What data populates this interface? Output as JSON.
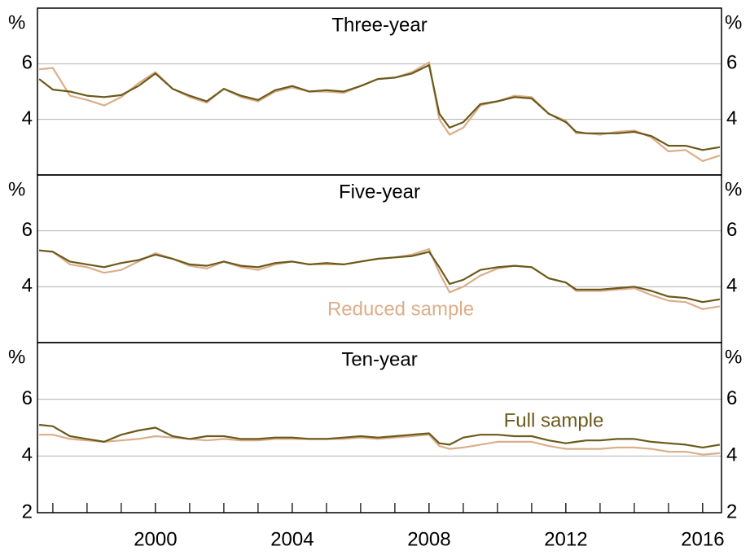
{
  "chart_data": {
    "type": "line",
    "xlim": [
      1996.55,
      2016.55
    ],
    "xticks": [
      2000,
      2004,
      2008,
      2012,
      2016
    ],
    "xminor": [
      1997,
      1998,
      1999,
      2000,
      2001,
      2002,
      2003,
      2004,
      2005,
      2006,
      2007,
      2008,
      2009,
      2010,
      2011,
      2012,
      2013,
      2014,
      2015,
      2016
    ],
    "x": [
      1996.6,
      1997.0,
      1997.5,
      1998.0,
      1998.5,
      1999.0,
      1999.5,
      2000.0,
      2000.5,
      2001.0,
      2001.5,
      2002.0,
      2002.5,
      2003.0,
      2003.5,
      2004.0,
      2004.5,
      2005.0,
      2005.5,
      2006.0,
      2006.5,
      2007.0,
      2007.5,
      2008.0,
      2008.3,
      2008.6,
      2009.0,
      2009.5,
      2010.0,
      2010.5,
      2011.0,
      2011.5,
      2012.0,
      2012.3,
      2012.6,
      2013.0,
      2013.5,
      2014.0,
      2014.5,
      2015.0,
      2015.5,
      2016.0,
      2016.5
    ],
    "panels": [
      {
        "title": "Three-year",
        "unit": "%",
        "ylim": [
          2,
          8
        ],
        "yticks": [
          4,
          6
        ],
        "grid": true,
        "series": [
          {
            "color": "#dcae8a",
            "values": [
              5.8,
              5.85,
              4.85,
              4.7,
              4.5,
              4.8,
              5.3,
              5.7,
              5.1,
              4.8,
              4.6,
              5.1,
              4.8,
              4.65,
              5.0,
              5.15,
              5.0,
              5.0,
              4.95,
              5.2,
              5.45,
              5.5,
              5.7,
              6.05,
              4.0,
              3.45,
              3.7,
              4.5,
              4.65,
              4.85,
              4.8,
              4.2,
              3.95,
              3.5,
              3.5,
              3.45,
              3.55,
              3.6,
              3.35,
              2.85,
              2.9,
              2.5,
              2.7
            ]
          },
          {
            "color": "#6b5a1c",
            "values": [
              5.45,
              5.07,
              5.0,
              4.85,
              4.8,
              4.87,
              5.2,
              5.65,
              5.1,
              4.85,
              4.65,
              5.1,
              4.85,
              4.7,
              5.05,
              5.2,
              5.0,
              5.05,
              5.0,
              5.2,
              5.45,
              5.5,
              5.65,
              5.95,
              4.2,
              3.7,
              3.9,
              4.55,
              4.65,
              4.8,
              4.75,
              4.2,
              3.9,
              3.55,
              3.5,
              3.5,
              3.5,
              3.55,
              3.4,
              3.05,
              3.05,
              2.9,
              3.0
            ]
          }
        ]
      },
      {
        "title": "Five-year",
        "unit": "%",
        "ylim": [
          2,
          8
        ],
        "yticks": [
          4,
          6
        ],
        "grid": true,
        "series": [
          {
            "name": "Reduced sample",
            "color": "#dcae8a",
            "values": [
              5.3,
              5.25,
              4.8,
              4.7,
              4.5,
              4.6,
              4.9,
              5.2,
              5.0,
              4.75,
              4.65,
              4.9,
              4.7,
              4.6,
              4.8,
              4.9,
              4.8,
              4.8,
              4.8,
              4.9,
              5.0,
              5.05,
              5.15,
              5.35,
              4.5,
              3.8,
              4.0,
              4.4,
              4.65,
              4.75,
              4.7,
              4.3,
              4.15,
              3.85,
              3.85,
              3.85,
              3.9,
              3.95,
              3.7,
              3.5,
              3.45,
              3.2,
              3.3
            ]
          },
          {
            "color": "#6b5a1c",
            "values": [
              5.3,
              5.25,
              4.9,
              4.8,
              4.7,
              4.85,
              4.95,
              5.15,
              5.0,
              4.8,
              4.75,
              4.9,
              4.75,
              4.7,
              4.85,
              4.9,
              4.8,
              4.85,
              4.8,
              4.9,
              5.0,
              5.05,
              5.1,
              5.25,
              4.7,
              4.1,
              4.25,
              4.6,
              4.7,
              4.75,
              4.7,
              4.3,
              4.15,
              3.9,
              3.9,
              3.9,
              3.95,
              4.0,
              3.85,
              3.65,
              3.6,
              3.45,
              3.55
            ]
          }
        ]
      },
      {
        "title": "Ten-year",
        "unit": "%",
        "ylim": [
          2,
          8
        ],
        "yticks": [
          2,
          4,
          6
        ],
        "grid": true,
        "series": [
          {
            "color": "#dcae8a",
            "values": [
              4.75,
              4.75,
              4.6,
              4.55,
              4.5,
              4.55,
              4.6,
              4.7,
              4.65,
              4.6,
              4.55,
              4.6,
              4.55,
              4.55,
              4.6,
              4.6,
              4.6,
              4.6,
              4.6,
              4.65,
              4.6,
              4.65,
              4.7,
              4.75,
              4.35,
              4.25,
              4.3,
              4.4,
              4.5,
              4.5,
              4.5,
              4.35,
              4.25,
              4.25,
              4.25,
              4.25,
              4.3,
              4.3,
              4.25,
              4.15,
              4.15,
              4.05,
              4.1
            ]
          },
          {
            "name": "Full sample",
            "color": "#6b5a1c",
            "values": [
              5.1,
              5.05,
              4.7,
              4.6,
              4.5,
              4.75,
              4.9,
              5.0,
              4.7,
              4.6,
              4.7,
              4.7,
              4.6,
              4.6,
              4.65,
              4.65,
              4.6,
              4.6,
              4.65,
              4.7,
              4.65,
              4.7,
              4.75,
              4.8,
              4.45,
              4.4,
              4.65,
              4.75,
              4.75,
              4.7,
              4.7,
              4.55,
              4.45,
              4.5,
              4.55,
              4.55,
              4.6,
              4.6,
              4.5,
              4.45,
              4.4,
              4.3,
              4.4
            ]
          }
        ]
      }
    ]
  }
}
